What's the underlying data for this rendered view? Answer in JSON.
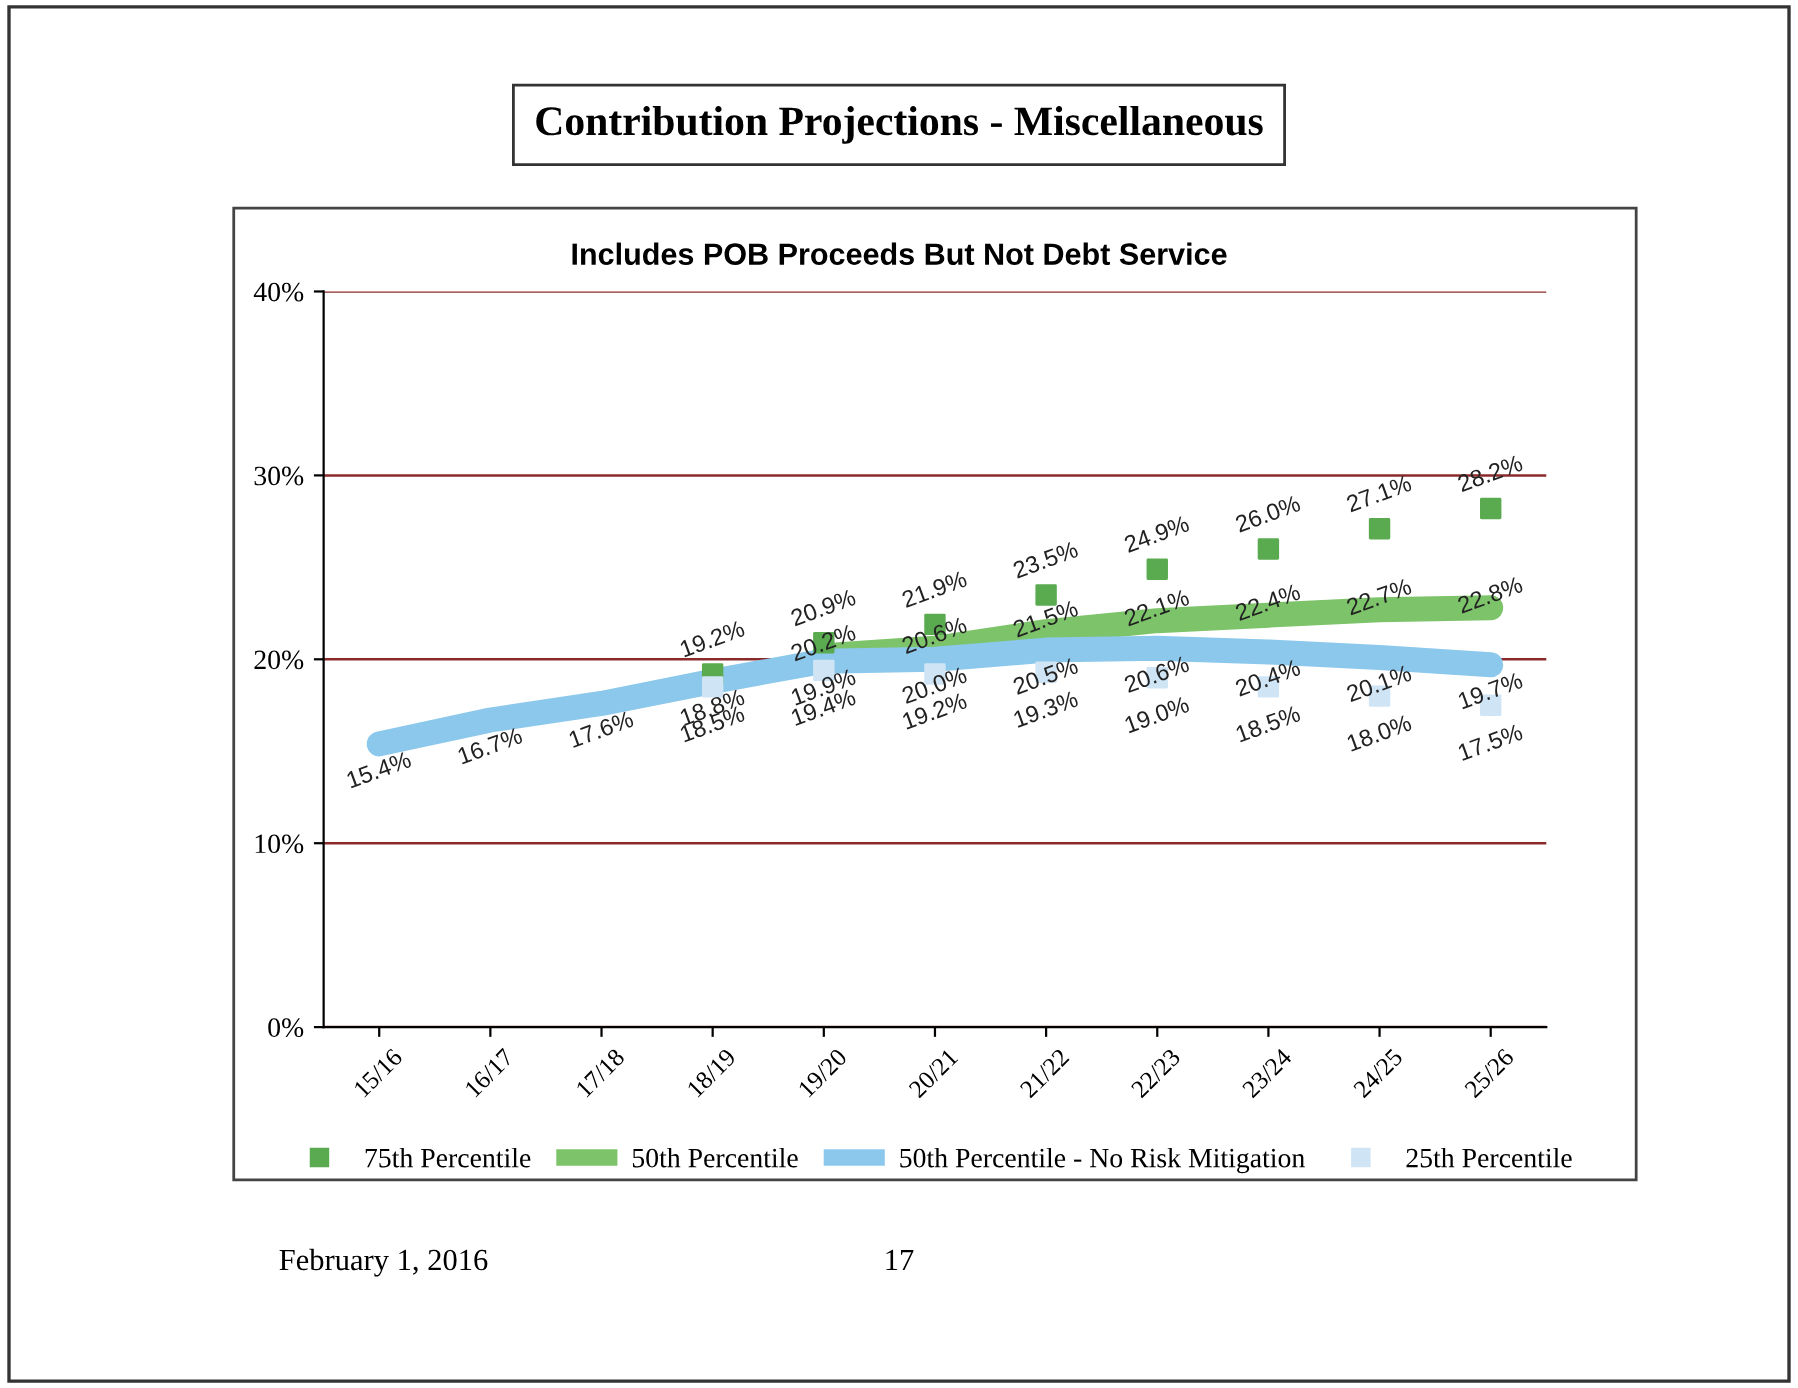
{
  "chart_data": {
    "type": "line",
    "title": "Contribution Projections - Miscellaneous",
    "subtitle": "Includes POB Proceeds But Not Debt Service",
    "categories": [
      "15/16",
      "16/17",
      "17/18",
      "18/19",
      "19/20",
      "20/21",
      "21/22",
      "22/23",
      "23/24",
      "24/25",
      "25/26"
    ],
    "series": [
      {
        "name": "75th Percentile",
        "type": "scatter",
        "marker": "square",
        "color": "#5aaa50",
        "values": [
          null,
          null,
          null,
          19.2,
          20.9,
          21.9,
          23.5,
          24.9,
          26.0,
          27.1,
          28.2
        ],
        "value_labels": [
          null,
          null,
          null,
          "19.2%",
          "20.9%",
          "21.9%",
          "23.5%",
          "24.9%",
          "26.0%",
          "27.1%",
          "28.2%"
        ]
      },
      {
        "name": "50th Percentile",
        "color": "#7dc36a",
        "values": [
          null,
          null,
          null,
          null,
          20.2,
          20.6,
          21.5,
          22.1,
          22.4,
          22.7,
          22.8
        ],
        "value_labels": [
          null,
          null,
          null,
          null,
          "20.2%",
          "20.6%",
          "21.5%",
          "22.1%",
          "22.4%",
          "22.7%",
          "22.8%"
        ]
      },
      {
        "name": "50th Percentile - No Risk Mitigation",
        "color": "#8cc8ec",
        "values": [
          15.4,
          16.7,
          17.6,
          18.8,
          19.9,
          20.0,
          20.5,
          20.6,
          20.4,
          20.1,
          19.7
        ],
        "value_labels": [
          "15.4%",
          "16.7%",
          "17.6%",
          "18.8%",
          "19.9%",
          "20.0%",
          "20.5%",
          "20.6%",
          "20.4%",
          "20.1%",
          "19.7%"
        ]
      },
      {
        "name": "25th Percentile",
        "type": "scatter",
        "marker": "square",
        "color": "#cfe5f5",
        "values": [
          null,
          null,
          null,
          18.5,
          19.4,
          19.2,
          19.3,
          19.0,
          18.5,
          18.0,
          17.5
        ],
        "value_labels": [
          null,
          null,
          null,
          "18.5%",
          "19.4%",
          "19.2%",
          "19.3%",
          "19.0%",
          "18.5%",
          "18.0%",
          "17.5%"
        ]
      }
    ],
    "ylim": [
      0,
      40
    ],
    "yticks": [
      {
        "value": 0,
        "label": "0%"
      },
      {
        "value": 10,
        "label": "10%"
      },
      {
        "value": 20,
        "label": "20%"
      },
      {
        "value": 30,
        "label": "30%"
      },
      {
        "value": 40,
        "label": "40%"
      }
    ],
    "grid": "y",
    "legend": "bottom",
    "annotations": [
      "February 1, 2016",
      "17"
    ]
  }
}
